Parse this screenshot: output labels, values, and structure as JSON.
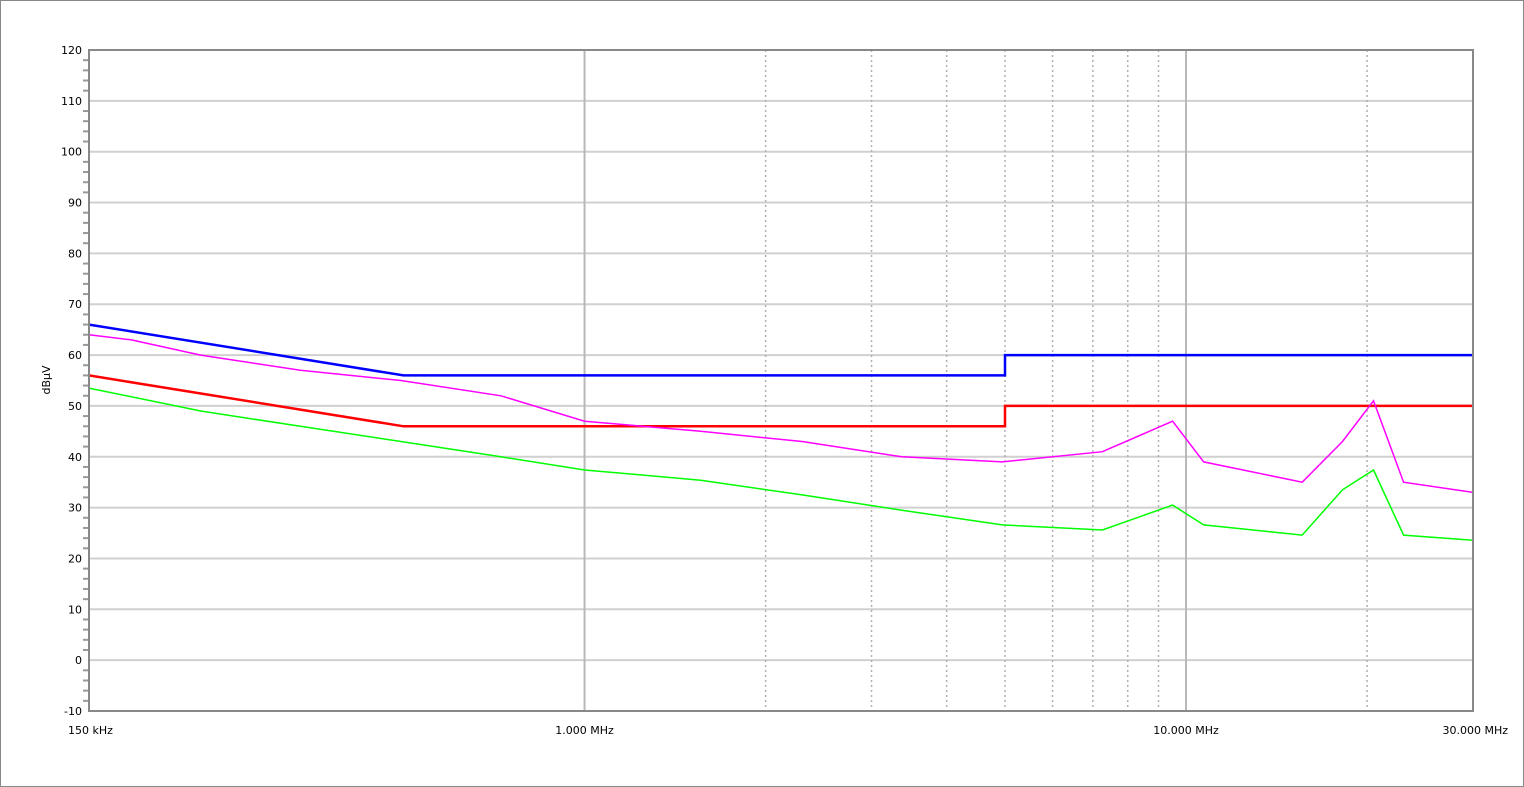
{
  "chart_data": {
    "type": "line",
    "xscale": "log",
    "xlim_MHz": [
      0.15,
      30
    ],
    "ylim": [
      -10,
      120
    ],
    "ylabel": "dBµV",
    "xlabel": "",
    "grid": true,
    "x_tick_labels": [
      {
        "f": 0.15,
        "label": "150 kHz"
      },
      {
        "f": 1,
        "label": "1.000 MHz"
      },
      {
        "f": 10,
        "label": "10.000 MHz"
      },
      {
        "f": 30,
        "label": "30.000 MHz"
      }
    ],
    "y_ticks": [
      120,
      110,
      100,
      90,
      80,
      70,
      60,
      50,
      40,
      30,
      20,
      10,
      0,
      -10
    ],
    "minor_x_grid_MHz": [
      2,
      3,
      4,
      5,
      6,
      7,
      8,
      9,
      20
    ],
    "series": [
      {
        "color": "#0000ff",
        "x": [
          0.15,
          0.5,
          5,
          5,
          30
        ],
        "y": [
          66,
          56,
          56,
          60,
          60
        ]
      },
      {
        "color": "#ff0000",
        "x": [
          0.15,
          0.5,
          5,
          5,
          30
        ],
        "y": [
          56,
          46,
          46,
          50,
          50
        ]
      },
      {
        "color": "#ff00ff",
        "x": [
          0.15,
          0.176,
          0.23,
          0.337,
          0.495,
          0.726,
          1.0,
          1.56,
          2.3,
          3.37,
          4.95,
          7.26,
          9.5,
          10.7,
          15.6,
          18.2,
          20.5,
          23.0,
          30
        ],
        "y": [
          64,
          63,
          60,
          57,
          55,
          52,
          47,
          45,
          43,
          40,
          39,
          41,
          47,
          39,
          35,
          43,
          51,
          35,
          33
        ]
      },
      {
        "color": "#00ff00",
        "x": [
          0.15,
          0.23,
          0.337,
          0.495,
          0.726,
          1.0,
          1.56,
          2.3,
          3.37,
          4.95,
          7.26,
          9.5,
          10.7,
          15.6,
          18.2,
          20.5,
          23.0,
          30
        ],
        "y": [
          53.5,
          49,
          46,
          43,
          40,
          37.4,
          35.4,
          32.5,
          29.5,
          26.6,
          25.6,
          30.5,
          26.6,
          24.6,
          33.5,
          37.4,
          24.6,
          23.6
        ]
      }
    ]
  }
}
